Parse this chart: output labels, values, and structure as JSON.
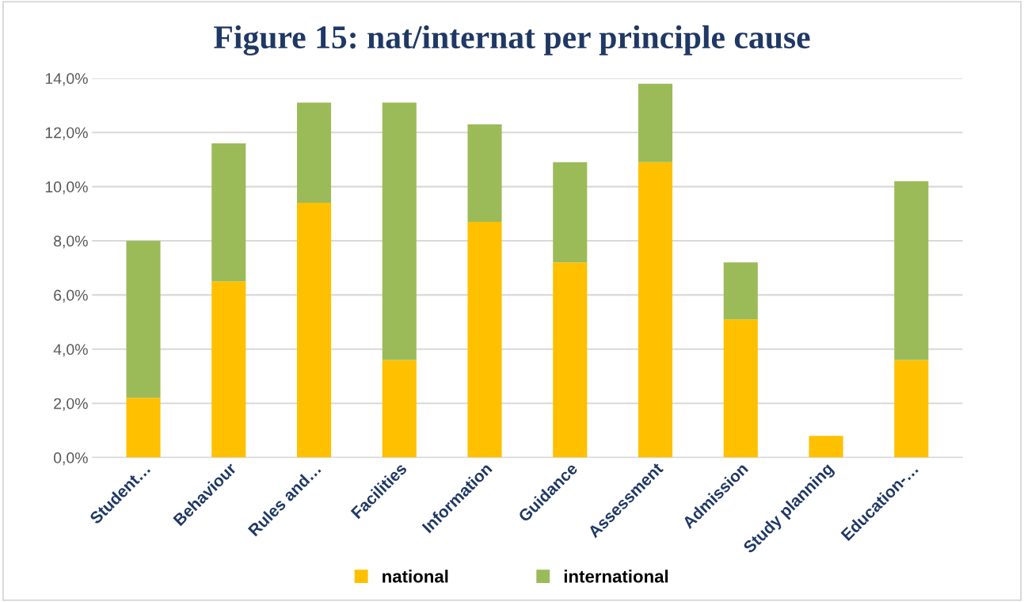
{
  "chart_data": {
    "type": "bar",
    "title": "Figure 15: nat/internat per principle cause",
    "stacked": true,
    "categories": [
      "Student…",
      "Behaviour",
      "Rules and…",
      "Facilities",
      "Information",
      "Guidance",
      "Assessment",
      "Admission",
      "Study planning",
      "Education-…"
    ],
    "series": [
      {
        "name": "national",
        "color": "#ffc000",
        "values": [
          2.2,
          6.5,
          9.4,
          3.6,
          8.7,
          7.2,
          10.9,
          5.1,
          0.8,
          3.6
        ]
      },
      {
        "name": "international",
        "color": "#9bbb59",
        "values": [
          5.8,
          5.1,
          3.7,
          9.5,
          3.6,
          3.7,
          2.9,
          2.1,
          0,
          6.6
        ]
      }
    ],
    "ylim": [
      0,
      14
    ],
    "yticks": [
      {
        "value": 0,
        "label": "0,0%"
      },
      {
        "value": 2,
        "label": "2,0%"
      },
      {
        "value": 4,
        "label": "4,0%"
      },
      {
        "value": 6,
        "label": "6,0%"
      },
      {
        "value": 8,
        "label": "8,0%"
      },
      {
        "value": 10,
        "label": "10,0%"
      },
      {
        "value": 12,
        "label": "12,0%"
      },
      {
        "value": 14,
        "label": "14,0%"
      }
    ],
    "grid": "y",
    "legend": "bottom"
  }
}
